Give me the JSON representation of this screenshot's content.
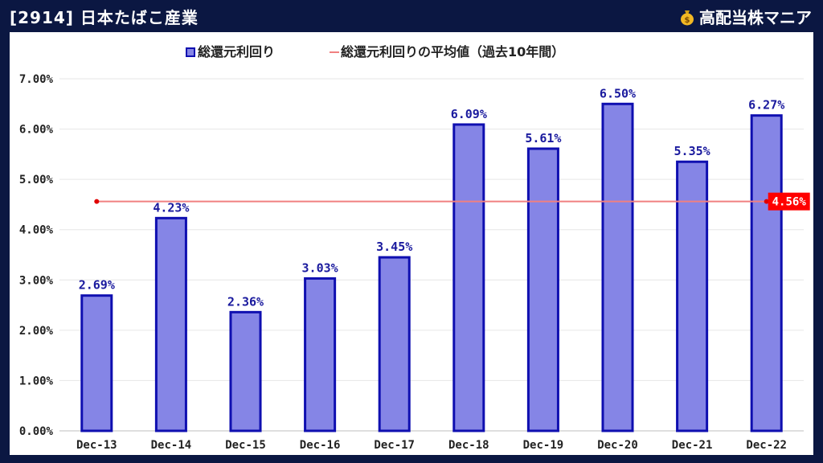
{
  "header": {
    "title": "[2914] 日本たばこ産業",
    "brand": "高配当株マニア"
  },
  "colors": {
    "background": "#0b1742",
    "bar_fill": "#8585e6",
    "bar_stroke": "#0f0fb0",
    "label_color": "#1a1a9e",
    "avg_line": "#f08080",
    "avg_label_bg": "#ff0000"
  },
  "chart_data": {
    "type": "bar",
    "categories": [
      "Dec-13",
      "Dec-14",
      "Dec-15",
      "Dec-16",
      "Dec-17",
      "Dec-18",
      "Dec-19",
      "Dec-20",
      "Dec-21",
      "Dec-22"
    ],
    "series": [
      {
        "name": "総還元利回り",
        "type": "bar",
        "values": [
          2.69,
          4.23,
          2.36,
          3.03,
          3.45,
          6.09,
          5.61,
          6.5,
          5.35,
          6.27
        ],
        "labels": [
          "2.69%",
          "4.23%",
          "2.36%",
          "3.03%",
          "3.45%",
          "6.09%",
          "5.61%",
          "6.50%",
          "5.35%",
          "6.27%"
        ]
      },
      {
        "name": "総還元利回りの平均値（過去10年間）",
        "type": "line",
        "value": 4.56,
        "label": "4.56%"
      }
    ],
    "yticks": [
      "0.00%",
      "1.00%",
      "2.00%",
      "3.00%",
      "4.00%",
      "5.00%",
      "6.00%",
      "7.00%"
    ],
    "ylim": [
      0,
      7
    ],
    "grid": true,
    "legend_position": "top"
  }
}
